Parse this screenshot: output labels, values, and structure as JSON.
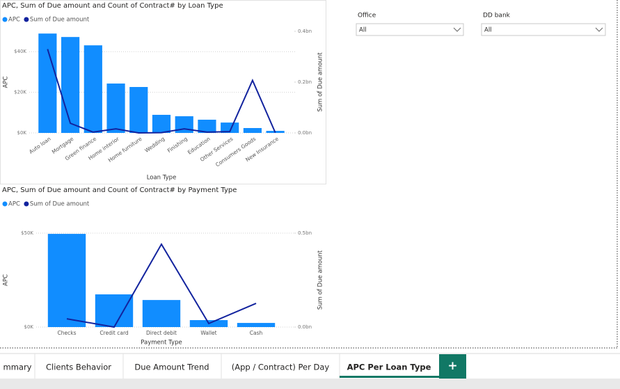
{
  "chart_data": [
    {
      "type": "combo",
      "title": "APC, Sum of Due amount and Count of Contract# by Loan Type",
      "x_label": "Loan Type",
      "y_label": "APC",
      "y2_label": "Sum of Due amount",
      "categories": [
        "Auto loan",
        "Mortgage",
        "Green finance",
        "Home interior",
        "Home furniture",
        "Wedding",
        "Finishing",
        "Education",
        "Other Services",
        "Consumers Goods",
        "New Insurance"
      ],
      "series": [
        {
          "name": "APC",
          "kind": "bar",
          "color": "#118dff",
          "values": [
            48900,
            47200,
            43100,
            24300,
            22600,
            8900,
            8200,
            6500,
            5100,
            2400,
            1000
          ]
        },
        {
          "name": "Sum of Due amount",
          "kind": "line",
          "axis": "y2",
          "color": "#12239e",
          "values": [
            330000000,
            38000000,
            3000000,
            16000000,
            0,
            1000000,
            16000000,
            3000000,
            5000000,
            207000000,
            1000000
          ]
        }
      ],
      "ylim": [
        0,
        50000
      ],
      "yticks": [
        {
          "value": 0,
          "label": "$0K"
        },
        {
          "value": 20000,
          "label": "$20K"
        },
        {
          "value": 40000,
          "label": "$40K"
        }
      ],
      "y2lim": [
        0,
        400000000
      ],
      "y2ticks": [
        {
          "value": 0,
          "label": "0.0bn"
        },
        {
          "value": 200000000,
          "label": "0.2bn"
        },
        {
          "value": 400000000,
          "label": "0.4bn"
        }
      ],
      "grid": true,
      "legend": "top-left"
    },
    {
      "type": "combo",
      "title": "APC, Sum of Due amount and Count of Contract# by Payment Type",
      "x_label": "Payment Type",
      "y_label": "APC",
      "y2_label": "Sum of Due amount",
      "categories": [
        "Checks",
        "Credit card",
        "Direct debit",
        "Wallet",
        "Cash"
      ],
      "series": [
        {
          "name": "APC",
          "kind": "bar",
          "color": "#118dff",
          "values": [
            49600,
            17400,
            14400,
            3700,
            2200
          ]
        },
        {
          "name": "Sum of Due amount",
          "kind": "line",
          "axis": "y2",
          "color": "#12239e",
          "values": [
            44000000,
            0,
            441000000,
            19000000,
            126000000
          ]
        }
      ],
      "ylim": [
        0,
        50000
      ],
      "yticks": [
        {
          "value": 0,
          "label": "$0K"
        },
        {
          "value": 50000,
          "label": "$50K"
        }
      ],
      "y2lim": [
        0,
        500000000
      ],
      "y2ticks": [
        {
          "value": 0,
          "label": "0.0bn"
        },
        {
          "value": 500000000,
          "label": "0.5bn"
        }
      ],
      "grid": true,
      "legend": "top-left"
    }
  ],
  "slicers": [
    {
      "label": "Office",
      "value": "All"
    },
    {
      "label": "DD bank",
      "value": "All"
    }
  ],
  "tabs": [
    "mmary",
    "Clients Behavior",
    "Due Amount Trend",
    "(App / Contract) Per Day",
    "APC Per Loan Type"
  ],
  "add_tab": "+"
}
